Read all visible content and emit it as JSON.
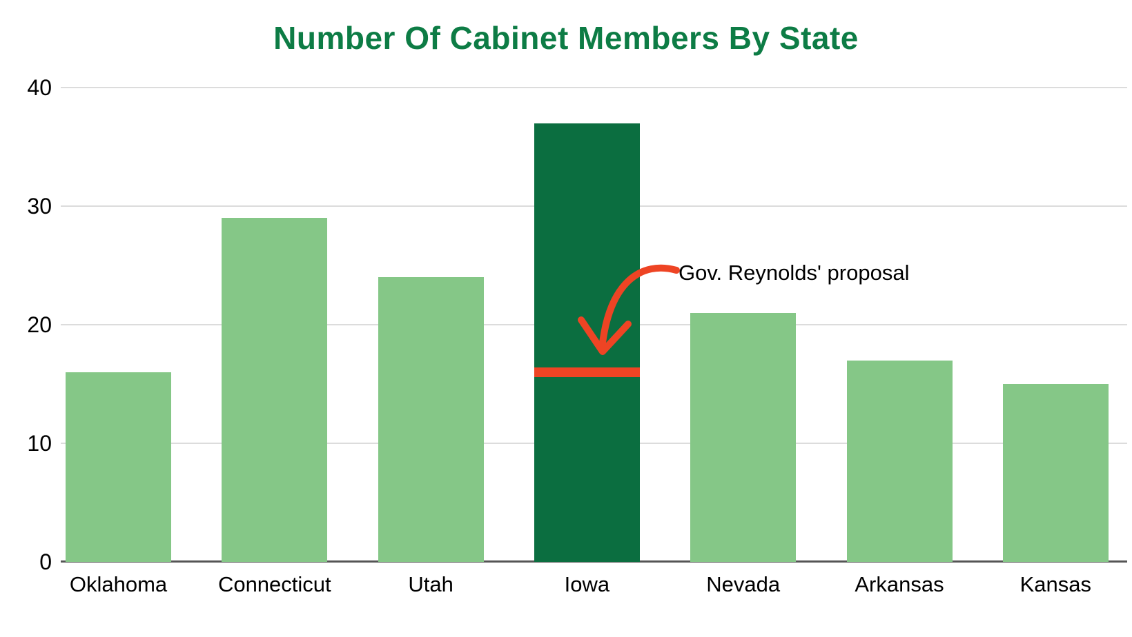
{
  "title": "Number Of Cabinet Members By State",
  "chart_data": {
    "type": "bar",
    "title": "Number Of Cabinet Members By State",
    "categories": [
      "Oklahoma",
      "Connecticut",
      "Utah",
      "Iowa",
      "Nevada",
      "Arkansas",
      "Kansas"
    ],
    "values": [
      16,
      29,
      24,
      37,
      21,
      17,
      15
    ],
    "highlighted_category": "Iowa",
    "xlabel": "",
    "ylabel": "",
    "ylim": [
      0,
      40
    ],
    "yticks": [
      0,
      10,
      20,
      30,
      40
    ],
    "grid": true,
    "legend": false,
    "annotation": {
      "label": "Gov. Reynolds' proposal",
      "value": 16,
      "target_category": "Iowa"
    }
  },
  "colors": {
    "title_green": "#0d7c45",
    "bar_light_green": "#85c787",
    "bar_dark_green": "#0b6e40",
    "annotation_red": "#ee4424",
    "gridline": "#dcdcdc",
    "baseline": "#555555",
    "axis_text": "#000000",
    "background": "#ffffff"
  }
}
